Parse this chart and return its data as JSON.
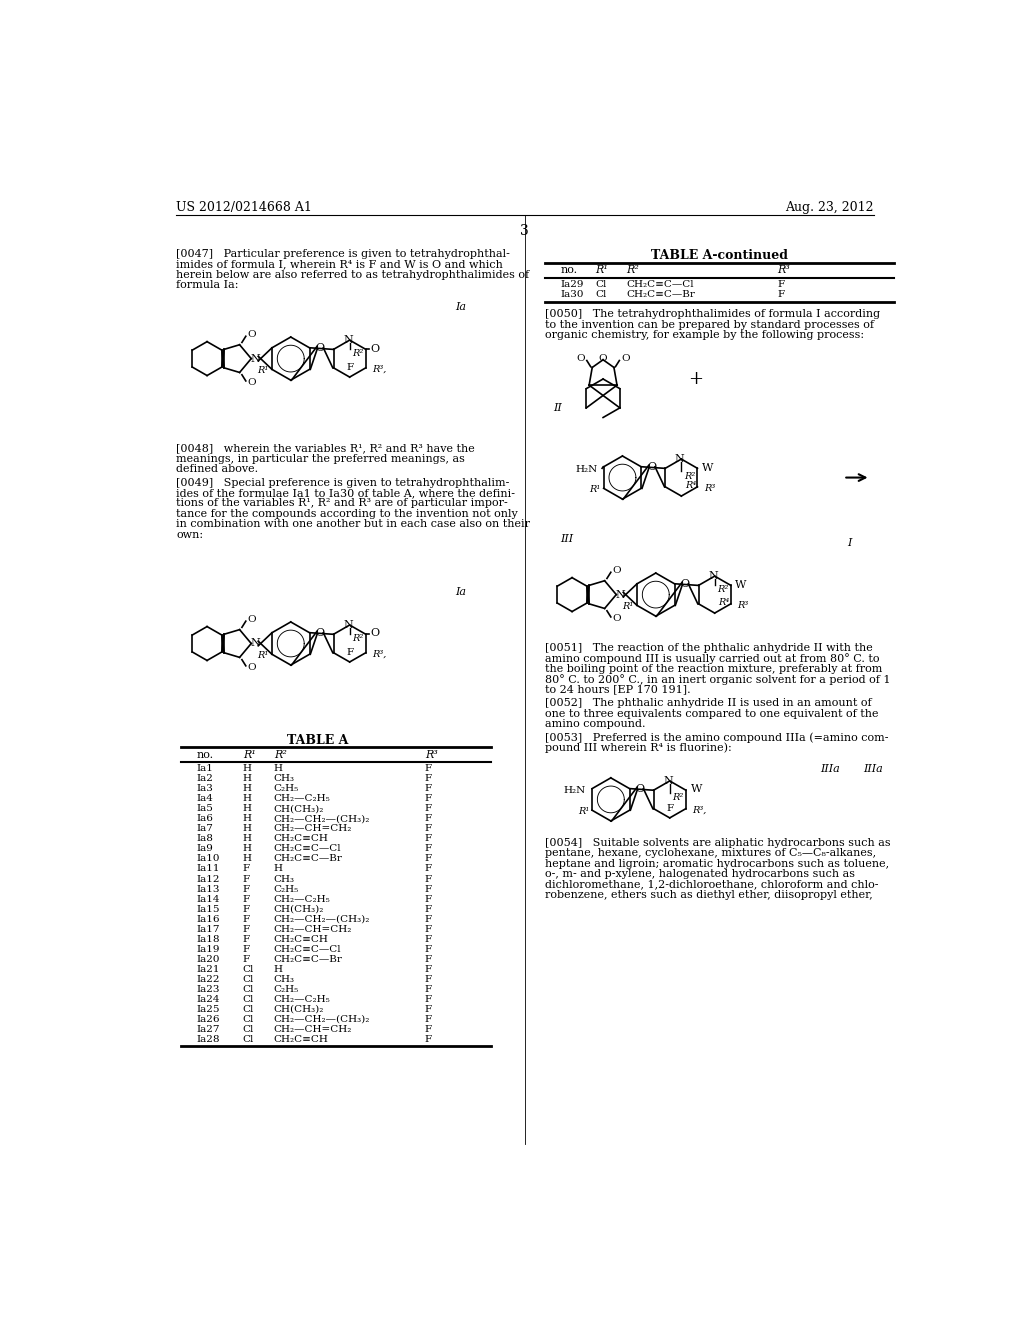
{
  "header_left": "US 2012/0214668 A1",
  "header_right": "Aug. 23, 2012",
  "page_number": "3",
  "bg_color": "#ffffff",
  "text_color": "#000000",
  "para_0047": "[0047]   Particular preference is given to tetrahydrophthal-\nimides of formula I, wherein R⁴ is F and W is O and which\nherein below are also referred to as tetrahydrophthalimides of\nformula Ia:",
  "para_0048": "[0048]   wherein the variables R¹, R² and R³ have the\nmeanings, in particular the preferred meanings, as\ndefined above.",
  "para_0049": "[0049]   Special preference is given to tetrahydrophthalim-\nides of the formulae Ia1 to Ia30 of table A, where the defini-\ntions of the variables R¹, R² and R³ are of particular impor-\ntance for the compounds according to the invention not only\nin combination with one another but in each case also on their\nown:",
  "table_a_title": "TABLE A",
  "table_a_continued_title": "TABLE A-continued",
  "table_a_headers": [
    "no.",
    "R¹",
    "R²",
    "R³"
  ],
  "table_a_rows": [
    [
      "Ia1",
      "H",
      "H",
      "F"
    ],
    [
      "Ia2",
      "H",
      "CH₃",
      "F"
    ],
    [
      "Ia3",
      "H",
      "C₂H₅",
      "F"
    ],
    [
      "Ia4",
      "H",
      "CH₂—C₂H₅",
      "F"
    ],
    [
      "Ia5",
      "H",
      "CH(CH₃)₂",
      "F"
    ],
    [
      "Ia6",
      "H",
      "CH₂—CH₂—(CH₃)₂",
      "F"
    ],
    [
      "Ia7",
      "H",
      "CH₂—CH=CH₂",
      "F"
    ],
    [
      "Ia8",
      "H",
      "CH₂C≡CH",
      "F"
    ],
    [
      "Ia9",
      "H",
      "CH₂C≡C—Cl",
      "F"
    ],
    [
      "Ia10",
      "H",
      "CH₂C≡C—Br",
      "F"
    ],
    [
      "Ia11",
      "F",
      "H",
      "F"
    ],
    [
      "Ia12",
      "F",
      "CH₃",
      "F"
    ],
    [
      "Ia13",
      "F",
      "C₂H₅",
      "F"
    ],
    [
      "Ia14",
      "F",
      "CH₂—C₂H₅",
      "F"
    ],
    [
      "Ia15",
      "F",
      "CH(CH₃)₂",
      "F"
    ],
    [
      "Ia16",
      "F",
      "CH₂—CH₂—(CH₃)₂",
      "F"
    ],
    [
      "Ia17",
      "F",
      "CH₂—CH=CH₂",
      "F"
    ],
    [
      "Ia18",
      "F",
      "CH₂C≡CH",
      "F"
    ],
    [
      "Ia19",
      "F",
      "CH₂C≡C—Cl",
      "F"
    ],
    [
      "Ia20",
      "F",
      "CH₂C≡C—Br",
      "F"
    ],
    [
      "Ia21",
      "Cl",
      "H",
      "F"
    ],
    [
      "Ia22",
      "Cl",
      "CH₃",
      "F"
    ],
    [
      "Ia23",
      "Cl",
      "C₂H₅",
      "F"
    ],
    [
      "Ia24",
      "Cl",
      "CH₂—C₂H₅",
      "F"
    ],
    [
      "Ia25",
      "Cl",
      "CH(CH₃)₂",
      "F"
    ],
    [
      "Ia26",
      "Cl",
      "CH₂—CH₂—(CH₃)₂",
      "F"
    ],
    [
      "Ia27",
      "Cl",
      "CH₂—CH=CH₂",
      "F"
    ],
    [
      "Ia28",
      "Cl",
      "CH₂C≡CH",
      "F"
    ]
  ],
  "table_a_cont_rows": [
    [
      "Ia29",
      "Cl",
      "CH₂C≡C—Cl",
      "F"
    ],
    [
      "Ia30",
      "Cl",
      "CH₂C≡C—Br",
      "F"
    ]
  ],
  "para_0050": "[0050]   The tetrahydrophthalimides of formula I according\nto the invention can be prepared by standard processes of\norganic chemistry, for example by the following process:",
  "para_0051": "[0051]   The reaction of the phthalic anhydride II with the\namino compound III is usually carried out at from 80° C. to\nthe boiling point of the reaction mixture, preferably at from\n80° C. to 200° C., in an inert organic solvent for a period of 1\nto 24 hours [EP 170 191].",
  "para_0052": "[0052]   The phthalic anhydride II is used in an amount of\none to three equivalents compared to one equivalent of the\namino compound.",
  "para_0053": "[0053]   Preferred is the amino compound IIIa (=amino com-\npound III wherein R⁴ is fluorine):",
  "para_0054": "[0054]   Suitable solvents are aliphatic hydrocarbons such as\npentane, hexane, cyclohexane, mixtures of C₅—C₈-alkanes,\nheptane and ligroin; aromatic hydrocarbons such as toluene,\no-, m- and p-xylene, halogenated hydrocarbons such as\ndichloromethane, 1,2-dichloroethane, chloroform and chlo-\nrobenzene, ethers such as diethyl ether, diisopropyl ether,"
}
